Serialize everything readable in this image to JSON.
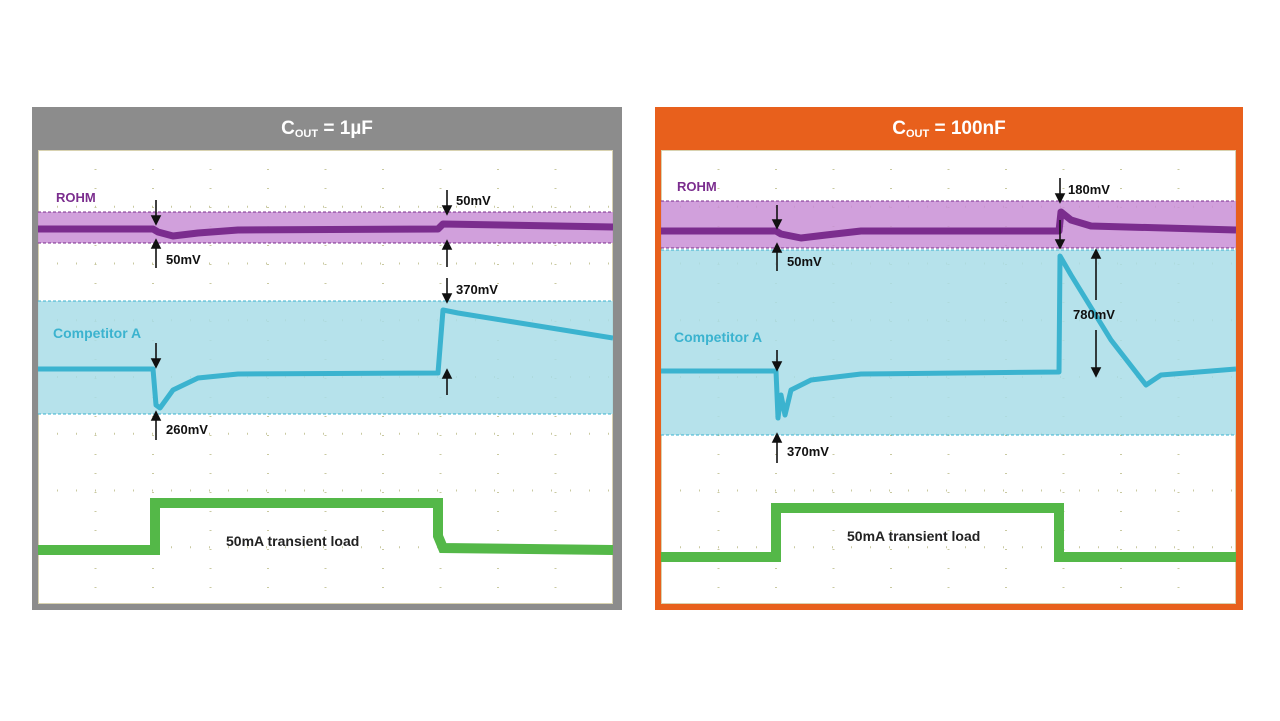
{
  "chart_data": [
    {
      "type": "line",
      "title_main": "C",
      "title_sub": "OUT",
      "title_rest": " = 1µF",
      "header_color": "#8c8c8c",
      "load_label": "50mA transient load",
      "series": [
        {
          "name": "ROHM",
          "color": "#7b2d8e",
          "band_color": "#c98fd6",
          "deviation_mV": [
            50,
            50
          ]
        },
        {
          "name": "Competitor A",
          "color": "#3bb3cf",
          "band_color": "#a9dde8",
          "deviation_mV": [
            260,
            370
          ]
        },
        {
          "name": "",
          "color": "#54b848",
          "load_step_mA": 50
        }
      ],
      "annotations": [
        "50mV",
        "50mV",
        "370mV",
        "260mV"
      ]
    },
    {
      "type": "line",
      "title_main": "C",
      "title_sub": "OUT",
      "title_rest": " = 100nF",
      "header_color": "#e8601c",
      "load_label": "50mA transient load",
      "series": [
        {
          "name": "ROHM",
          "color": "#7b2d8e",
          "band_color": "#c98fd6",
          "deviation_mV": [
            50,
            180
          ]
        },
        {
          "name": "Competitor A",
          "color": "#3bb3cf",
          "band_color": "#a9dde8",
          "deviation_mV": [
            370,
            780
          ]
        },
        {
          "name": "",
          "color": "#54b848",
          "load_step_mA": 50
        }
      ],
      "annotations": [
        "180mV",
        "50mV",
        "780mV",
        "370mV"
      ]
    }
  ]
}
